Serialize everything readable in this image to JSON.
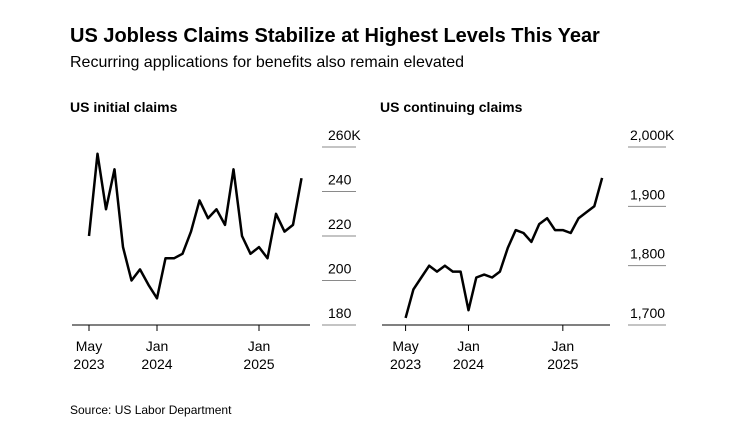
{
  "title": "US Jobless Claims Stabilize at Highest Levels This Year",
  "subtitle": "Recurring applications for benefits also remain elevated",
  "source": "Source: US Labor Department",
  "chart_data": [
    {
      "type": "line",
      "title": "US initial claims",
      "color": "#000000",
      "x": [
        "2023-05",
        "2023-06",
        "2023-07",
        "2023-08",
        "2023-09",
        "2023-10",
        "2023-11",
        "2023-12",
        "2024-01",
        "2024-02",
        "2024-03",
        "2024-04",
        "2024-05",
        "2024-06",
        "2024-07",
        "2024-08",
        "2024-09",
        "2024-10",
        "2024-11",
        "2024-12",
        "2025-01",
        "2025-02",
        "2025-03",
        "2025-04",
        "2025-05",
        "2025-06"
      ],
      "values": [
        220,
        257,
        232,
        250,
        215,
        200,
        205,
        198,
        192,
        210,
        210,
        212,
        222,
        236,
        228,
        232,
        225,
        250,
        220,
        212,
        215,
        210,
        230,
        222,
        225,
        246
      ],
      "xlim": [
        "2023-03",
        "2025-07"
      ],
      "xticks": [
        {
          "value": "2023-05",
          "label": "May 2023"
        },
        {
          "value": "2024-01",
          "label": "Jan 2024"
        },
        {
          "value": "2025-01",
          "label": "Jan 2025"
        }
      ],
      "ylim": [
        180,
        260
      ],
      "yticks": [
        180,
        200,
        220,
        240,
        {
          "value": 260,
          "label": "260K"
        }
      ]
    },
    {
      "type": "line",
      "title": "US continuing claims",
      "color": "#000000",
      "x": [
        "2023-05",
        "2023-06",
        "2023-07",
        "2023-08",
        "2023-09",
        "2023-10",
        "2023-11",
        "2023-12",
        "2024-01",
        "2024-02",
        "2024-03",
        "2024-04",
        "2024-05",
        "2024-06",
        "2024-07",
        "2024-08",
        "2024-09",
        "2024-10",
        "2024-11",
        "2024-12",
        "2025-01",
        "2025-02",
        "2025-03",
        "2025-04",
        "2025-05",
        "2025-06"
      ],
      "values": [
        1712,
        1760,
        1780,
        1800,
        1790,
        1800,
        1790,
        1790,
        1725,
        1780,
        1785,
        1780,
        1790,
        1830,
        1860,
        1855,
        1840,
        1870,
        1880,
        1860,
        1860,
        1855,
        1880,
        1890,
        1900,
        1948
      ],
      "xlim": [
        "2023-02",
        "2025-07"
      ],
      "xticks": [
        {
          "value": "2023-05",
          "label": "May 2023"
        },
        {
          "value": "2024-01",
          "label": "Jan 2024"
        },
        {
          "value": "2025-01",
          "label": "Jan 2025"
        }
      ],
      "ylim": [
        1700,
        2000
      ],
      "yticks": [
        {
          "value": 1700,
          "label": "1,700"
        },
        {
          "value": 1800,
          "label": "1,800"
        },
        {
          "value": 1900,
          "label": "1,900"
        },
        {
          "value": 2000,
          "label": "2,000K"
        }
      ]
    }
  ]
}
